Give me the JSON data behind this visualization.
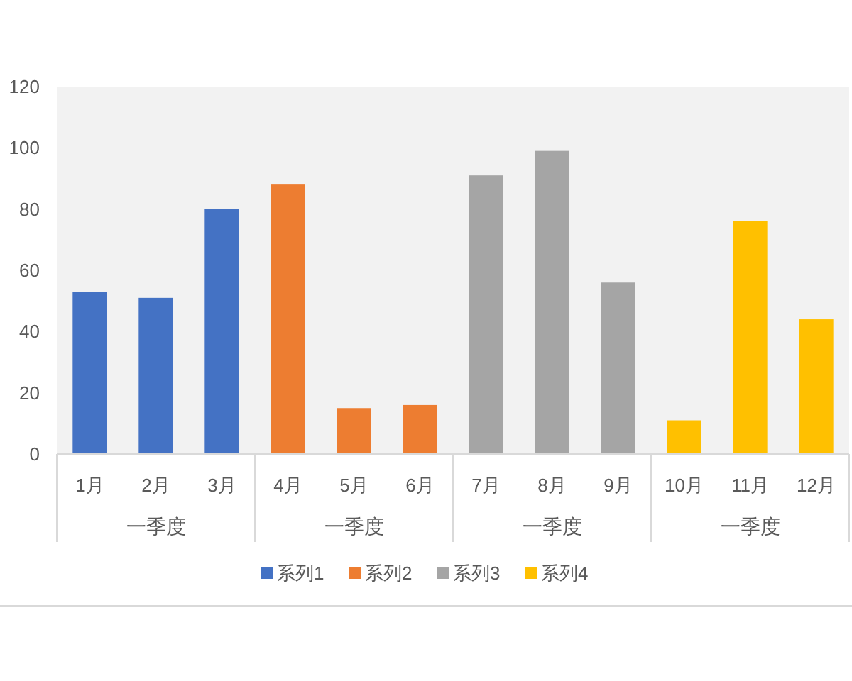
{
  "chart_data": {
    "type": "bar",
    "categories": [
      "1月",
      "2月",
      "3月",
      "4月",
      "5月",
      "6月",
      "7月",
      "8月",
      "9月",
      "10月",
      "11月",
      "12月"
    ],
    "series": [
      {
        "name": "系列1",
        "color": "#4472c4",
        "values": [
          53,
          51,
          80,
          null,
          null,
          null,
          null,
          null,
          null,
          null,
          null,
          null
        ]
      },
      {
        "name": "系列2",
        "color": "#ed7d31",
        "values": [
          null,
          null,
          null,
          88,
          15,
          16,
          null,
          null,
          null,
          null,
          null,
          null
        ]
      },
      {
        "name": "系列3",
        "color": "#a5a5a5",
        "values": [
          null,
          null,
          null,
          null,
          null,
          null,
          91,
          99,
          56,
          null,
          null,
          null
        ]
      },
      {
        "name": "系列4",
        "color": "#ffc000",
        "values": [
          null,
          null,
          null,
          null,
          null,
          null,
          null,
          null,
          null,
          11,
          76,
          44
        ]
      }
    ],
    "annotations": [
      "一季度",
      "一季度",
      "一季度",
      "一季度"
    ],
    "ylim": [
      0,
      120
    ],
    "yticks": [
      0,
      20,
      40,
      60,
      80,
      100,
      120
    ],
    "grid": false,
    "legend": "bottom"
  }
}
